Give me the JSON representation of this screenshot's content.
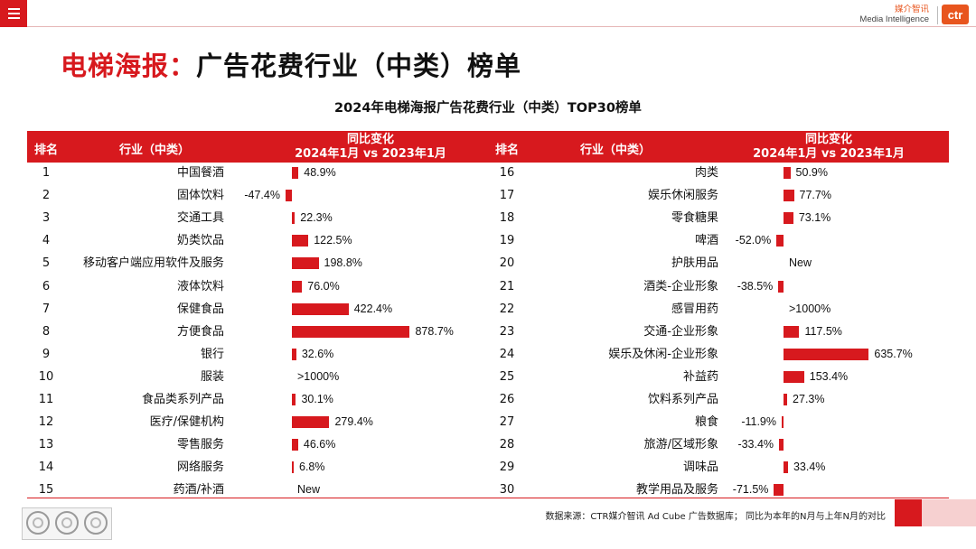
{
  "page": {
    "title_red": "电梯海报：",
    "title_black": "广告花费行业（中类）榜单",
    "subtitle": "2024年电梯海报广告花费行业（中类）TOP30榜单"
  },
  "brand": {
    "name_cn": "媒介智讯",
    "name_en": "Media Intelligence",
    "logo_text": "ctr",
    "accent_color": "#e8551e"
  },
  "table": {
    "headers": {
      "rank": "排名",
      "industry": "行业（中类）",
      "change_line1": "同比变化",
      "change_line2": "2024年1月 vs 2023年1月"
    },
    "bar_color": "#d7191e",
    "header_color": "#d7191e",
    "left": [
      {
        "rank": "1",
        "industry": "中国餐酒",
        "change": "48.9%",
        "pct": 48.9
      },
      {
        "rank": "2",
        "industry": "固体饮料",
        "change": "-47.4%",
        "pct": -47.4
      },
      {
        "rank": "3",
        "industry": "交通工具",
        "change": "22.3%",
        "pct": 22.3
      },
      {
        "rank": "4",
        "industry": "奶类饮品",
        "change": "122.5%",
        "pct": 122.5
      },
      {
        "rank": "5",
        "industry": "移动客户端应用软件及服务",
        "change": "198.8%",
        "pct": 198.8
      },
      {
        "rank": "6",
        "industry": "液体饮料",
        "change": "76.0%",
        "pct": 76.0
      },
      {
        "rank": "7",
        "industry": "保健食品",
        "change": "422.4%",
        "pct": 422.4
      },
      {
        "rank": "8",
        "industry": "方便食品",
        "change": "878.7%",
        "pct": 878.7
      },
      {
        "rank": "9",
        "industry": "银行",
        "change": "32.6%",
        "pct": 32.6
      },
      {
        "rank": "10",
        "industry": "服装",
        "change": ">1000%",
        "pct": null
      },
      {
        "rank": "11",
        "industry": "食品类系列产品",
        "change": "30.1%",
        "pct": 30.1
      },
      {
        "rank": "12",
        "industry": "医疗/保健机构",
        "change": "279.4%",
        "pct": 279.4
      },
      {
        "rank": "13",
        "industry": "零售服务",
        "change": "46.6%",
        "pct": 46.6
      },
      {
        "rank": "14",
        "industry": "网络服务",
        "change": "6.8%",
        "pct": 6.8
      },
      {
        "rank": "15",
        "industry": "药酒/补酒",
        "change": "New",
        "pct": null
      }
    ],
    "right": [
      {
        "rank": "16",
        "industry": "肉类",
        "change": "50.9%",
        "pct": 50.9
      },
      {
        "rank": "17",
        "industry": "娱乐休闲服务",
        "change": "77.7%",
        "pct": 77.7
      },
      {
        "rank": "18",
        "industry": "零食糖果",
        "change": "73.1%",
        "pct": 73.1
      },
      {
        "rank": "19",
        "industry": "啤酒",
        "change": "-52.0%",
        "pct": -52.0
      },
      {
        "rank": "20",
        "industry": "护肤用品",
        "change": "New",
        "pct": null
      },
      {
        "rank": "21",
        "industry": "酒类-企业形象",
        "change": "-38.5%",
        "pct": -38.5
      },
      {
        "rank": "22",
        "industry": "感冒用药",
        "change": ">1000%",
        "pct": null
      },
      {
        "rank": "23",
        "industry": "交通-企业形象",
        "change": "117.5%",
        "pct": 117.5
      },
      {
        "rank": "24",
        "industry": "娱乐及休闲-企业形象",
        "change": "635.7%",
        "pct": 635.7
      },
      {
        "rank": "25",
        "industry": "补益药",
        "change": "153.4%",
        "pct": 153.4
      },
      {
        "rank": "26",
        "industry": "饮料系列产品",
        "change": "27.3%",
        "pct": 27.3
      },
      {
        "rank": "27",
        "industry": "粮食",
        "change": "-11.9%",
        "pct": -11.9
      },
      {
        "rank": "28",
        "industry": "旅游/区域形象",
        "change": "-33.4%",
        "pct": -33.4
      },
      {
        "rank": "29",
        "industry": "调味品",
        "change": "33.4%",
        "pct": 33.4
      },
      {
        "rank": "30",
        "industry": "教学用品及服务",
        "change": "-71.5%",
        "pct": -71.5
      }
    ]
  },
  "footer": {
    "source_note": "数据来源：CTR媒介智讯 Ad Cube 广告数据库；  同比为本年的N月与上年N月的对比",
    "cert_label": "SGS"
  }
}
